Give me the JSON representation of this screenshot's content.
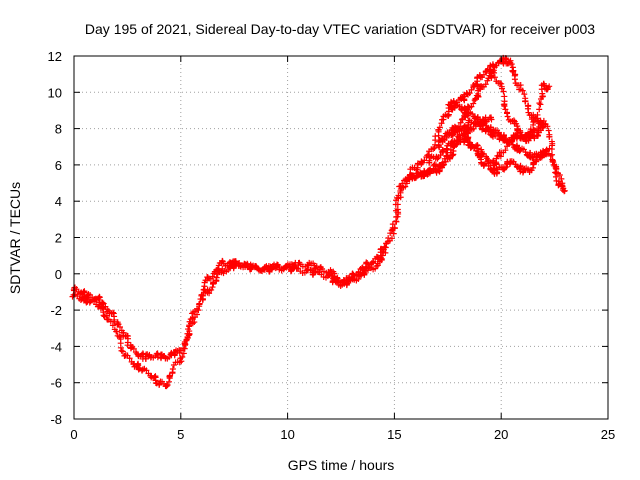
{
  "chart_data": {
    "type": "scatter",
    "title": "Day 195 of 2021, Sidereal Day-to-day VTEC variation (SDTVAR) for receiver p003",
    "xlabel": "GPS time / hours",
    "ylabel": "SDTVAR / TECUs",
    "xlim": [
      0,
      25
    ],
    "ylim": [
      -8,
      12
    ],
    "xticks": [
      0,
      5,
      10,
      15,
      20,
      25
    ],
    "yticks": [
      -8,
      -6,
      -4,
      -2,
      0,
      2,
      4,
      6,
      8,
      10,
      12
    ],
    "grid": true,
    "marker": "plus",
    "color": "#ff0000",
    "series": [
      {
        "x": [
          0.0,
          0.3,
          0.6,
          1.0,
          1.3,
          1.6,
          2.0,
          2.3,
          2.6,
          3.0,
          3.3,
          3.6,
          4.0,
          4.3,
          4.6,
          5.0,
          5.3,
          5.6,
          6.0,
          6.3,
          6.6,
          7.0,
          7.3,
          7.6,
          8.0,
          8.5,
          9.0,
          9.5,
          10.0,
          10.5,
          11.0,
          11.5,
          12.0,
          12.3,
          12.6,
          13.0,
          13.3,
          13.6,
          14.0,
          14.3,
          14.6,
          15.0,
          15.3,
          15.6,
          16.0,
          16.3,
          16.6,
          17.0,
          17.3,
          17.6,
          18.0,
          18.3,
          18.6,
          19.0,
          19.3,
          19.5
        ],
        "y": [
          -0.8,
          -1.0,
          -1.2,
          -1.3,
          -1.5,
          -2.0,
          -2.6,
          -3.2,
          -3.9,
          -4.4,
          -4.6,
          -4.5,
          -4.5,
          -4.6,
          -4.4,
          -4.3,
          -3.5,
          -2.3,
          -1.0,
          -0.3,
          0.1,
          0.6,
          0.5,
          0.6,
          0.4,
          0.3,
          0.3,
          0.4,
          0.4,
          0.5,
          0.5,
          0.3,
          0.1,
          -0.3,
          -0.4,
          -0.2,
          0.1,
          0.4,
          0.7,
          1.0,
          1.6,
          3.0,
          4.9,
          5.3,
          5.4,
          5.5,
          5.6,
          5.7,
          6.0,
          6.5,
          7.3,
          7.8,
          8.0,
          8.2,
          8.5,
          8.5
        ]
      },
      {
        "x": [
          0.0,
          0.4,
          0.8,
          1.2,
          1.6,
          2.0,
          2.4,
          2.8,
          3.2,
          3.6,
          4.0,
          4.3,
          4.6,
          5.0,
          5.3,
          5.6,
          6.0,
          6.3,
          6.6,
          7.0,
          7.4,
          7.8,
          8.2,
          8.6,
          9.0,
          9.5,
          10.0,
          10.5,
          11.0,
          11.5,
          12.0,
          12.3,
          12.6,
          13.0,
          13.4,
          13.8,
          14.2,
          14.6,
          15.0,
          15.3,
          15.6,
          16.0,
          16.4,
          16.8,
          17.2,
          17.6,
          18.0,
          18.4,
          18.8,
          19.2,
          19.6,
          20.0,
          20.4,
          20.8,
          21.2,
          21.6,
          22.0
        ],
        "y": [
          -1.2,
          -1.4,
          -1.5,
          -1.8,
          -2.4,
          -3.3,
          -4.4,
          -5.0,
          -5.2,
          -5.6,
          -6.0,
          -6.1,
          -5.4,
          -4.6,
          -3.5,
          -2.4,
          -1.4,
          -0.9,
          -0.4,
          0.2,
          0.4,
          0.5,
          0.4,
          0.3,
          0.2,
          0.3,
          0.3,
          0.2,
          0.1,
          0.0,
          -0.2,
          -0.5,
          -0.6,
          -0.4,
          -0.1,
          0.2,
          0.5,
          1.2,
          2.6,
          4.3,
          5.3,
          5.4,
          5.5,
          5.8,
          6.1,
          6.8,
          7.7,
          8.3,
          8.4,
          8.0,
          7.7,
          7.5,
          7.3,
          7.6,
          7.4,
          7.6,
          8.2
        ]
      },
      {
        "x": [
          15.8,
          16.2,
          16.6,
          17.0,
          17.3,
          17.6,
          17.9,
          18.2,
          18.5,
          18.8,
          19.1,
          19.4,
          19.7,
          20.0,
          20.3,
          20.6,
          20.9,
          21.2,
          21.5,
          21.8,
          22.1,
          22.4,
          22.7,
          22.9
        ],
        "y": [
          5.7,
          6.0,
          6.5,
          7.6,
          8.5,
          9.1,
          9.2,
          9.1,
          8.8,
          8.6,
          8.3,
          8.0,
          7.9,
          7.6,
          7.4,
          7.0,
          6.9,
          6.6,
          6.5,
          6.5,
          6.8,
          6.2,
          5.1,
          4.6
        ]
      },
      {
        "x": [
          17.5,
          17.8,
          18.1,
          18.4,
          18.7,
          19.0,
          19.3,
          19.6,
          19.9,
          20.2,
          20.4,
          20.6,
          20.9,
          21.2,
          21.5,
          21.8,
          22.0,
          22.3,
          22.6,
          22.9
        ],
        "y": [
          9.2,
          9.4,
          9.6,
          9.8,
          10.3,
          10.8,
          11.1,
          11.4,
          11.6,
          11.8,
          11.6,
          11.0,
          10.2,
          9.3,
          8.6,
          8.3,
          8.4,
          7.4,
          5.7,
          4.7
        ]
      },
      {
        "x": [
          17.0,
          17.3,
          17.6,
          17.9,
          18.2,
          18.5,
          18.8,
          19.1,
          19.4,
          19.7,
          20.0,
          20.3,
          20.6,
          20.9,
          21.2,
          21.5,
          21.8,
          22.0,
          22.2
        ],
        "y": [
          7.0,
          7.4,
          7.8,
          8.0,
          8.6,
          9.1,
          9.7,
          10.2,
          10.8,
          11.1,
          10.1,
          8.8,
          8.2,
          7.8,
          7.5,
          7.9,
          9.4,
          10.4,
          10.2
        ]
      },
      {
        "x": [
          16.6,
          17.0,
          17.4,
          17.8,
          18.2,
          18.6,
          19.0,
          19.4,
          19.7,
          20.0,
          20.4,
          20.8,
          21.2,
          21.6,
          22.0
        ],
        "y": [
          6.2,
          6.5,
          6.9,
          7.2,
          7.4,
          7.2,
          6.8,
          6.3,
          6.0,
          6.6,
          7.4,
          7.6,
          7.5,
          7.8,
          8.1
        ]
      },
      {
        "x": [
          17.4,
          17.7,
          18.0,
          18.3,
          18.6,
          18.9,
          19.2,
          19.5,
          19.8,
          20.1,
          20.4,
          20.7,
          21.0,
          21.3,
          21.6,
          21.9,
          22.2
        ],
        "y": [
          7.6,
          7.8,
          8.0,
          7.6,
          7.1,
          6.6,
          6.1,
          5.8,
          5.6,
          5.9,
          6.2,
          6.0,
          5.7,
          5.7,
          6.2,
          6.6,
          6.8
        ]
      }
    ]
  }
}
